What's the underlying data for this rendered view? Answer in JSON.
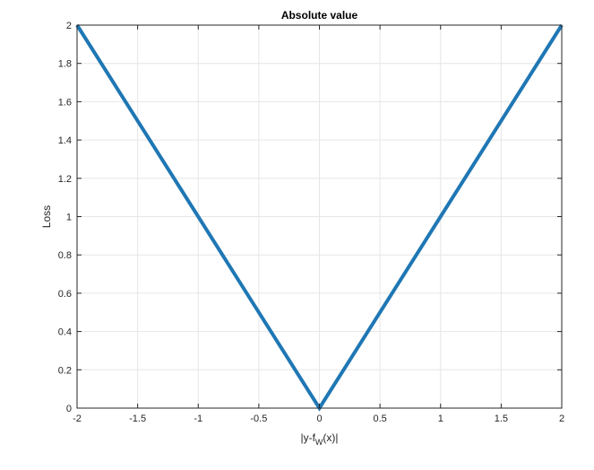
{
  "chart_data": {
    "type": "line",
    "title": "Absolute value",
    "xlabel_main": "|y-f",
    "xlabel_sub": "W",
    "xlabel_tail": "(x)|",
    "ylabel": "Loss",
    "xlim": [
      -2,
      2
    ],
    "ylim": [
      0,
      2
    ],
    "grid": true,
    "xticks": [
      -2,
      -1.5,
      -1,
      -0.5,
      0,
      0.5,
      1,
      1.5,
      2
    ],
    "xtick_labels": [
      "-2",
      "-1.5",
      "-1",
      "-0.5",
      "0",
      "0.5",
      "1",
      "1.5",
      "2"
    ],
    "yticks": [
      0,
      0.2,
      0.4,
      0.6,
      0.8,
      1,
      1.2,
      1.4,
      1.6,
      1.8,
      2
    ],
    "ytick_labels": [
      "0",
      "0.2",
      "0.4",
      "0.6",
      "0.8",
      "1",
      "1.2",
      "1.4",
      "1.6",
      "1.8",
      "2"
    ],
    "series": [
      {
        "x": [
          -2,
          -1,
          0,
          1,
          2
        ],
        "y": [
          2,
          1,
          0,
          1,
          2
        ],
        "color": "#1f77b4"
      }
    ]
  }
}
